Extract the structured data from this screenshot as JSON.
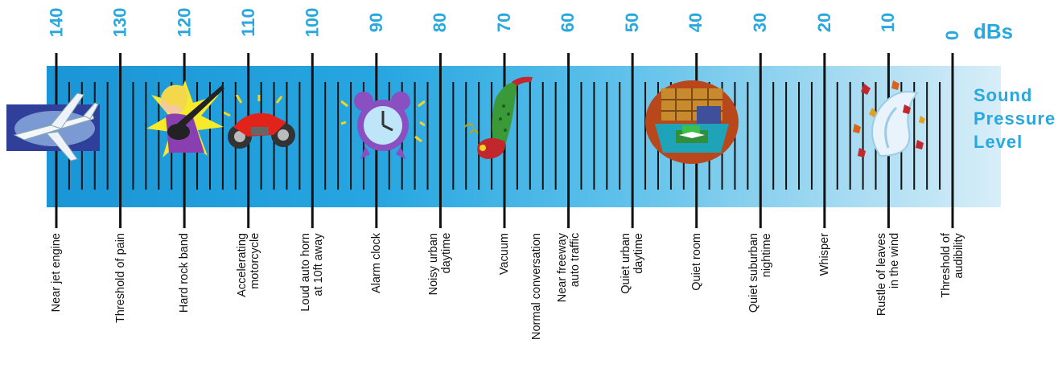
{
  "scale": {
    "unit": "dBs",
    "title_lines": [
      "Sound",
      "Pressure",
      "Level"
    ],
    "db_values": [
      140,
      130,
      120,
      110,
      100,
      90,
      80,
      70,
      60,
      50,
      40,
      30,
      20,
      10,
      0
    ],
    "colors": {
      "label_blue": "#29a8e0",
      "band_dark": "#1e9ad8",
      "band_light": "#cfe9f5"
    }
  },
  "sources": [
    {
      "db": 140,
      "label": "Near jet engine",
      "icon": "jet-airplane-icon"
    },
    {
      "db": 130,
      "label": "Threshold of pain",
      "icon": null
    },
    {
      "db": 120,
      "label": "Hard rock band",
      "icon": "rock-guitarist-icon"
    },
    {
      "db": 110,
      "label": "Accelerating\nmotorcycle",
      "icon": "motorcycle-icon"
    },
    {
      "db": 100,
      "label": "Loud auto horn\nat 10ft away",
      "icon": null
    },
    {
      "db": 90,
      "label": "Alarm clock",
      "icon": "alarm-clock-icon"
    },
    {
      "db": 80,
      "label": "Noisy urban\ndaytime",
      "icon": null
    },
    {
      "db": 70,
      "label": "Vacuum",
      "icon": "vacuum-cleaner-icon"
    },
    {
      "db": 65,
      "label": "Normal conversation",
      "icon": null
    },
    {
      "db": 60,
      "label": "Near freeway\nauto traffic",
      "icon": null
    },
    {
      "db": 50,
      "label": "Quiet urban\ndaytime",
      "icon": null
    },
    {
      "db": 40,
      "label": "Quiet room",
      "icon": "library-room-icon"
    },
    {
      "db": 30,
      "label": "Quiet suburban\nnightime",
      "icon": null
    },
    {
      "db": 20,
      "label": "Whisper",
      "icon": null
    },
    {
      "db": 10,
      "label": "Rustle of leaves\nin the wind",
      "icon": "blowing-leaves-icon"
    },
    {
      "db": 0,
      "label": "Threshold of\naudibility",
      "icon": null
    }
  ]
}
